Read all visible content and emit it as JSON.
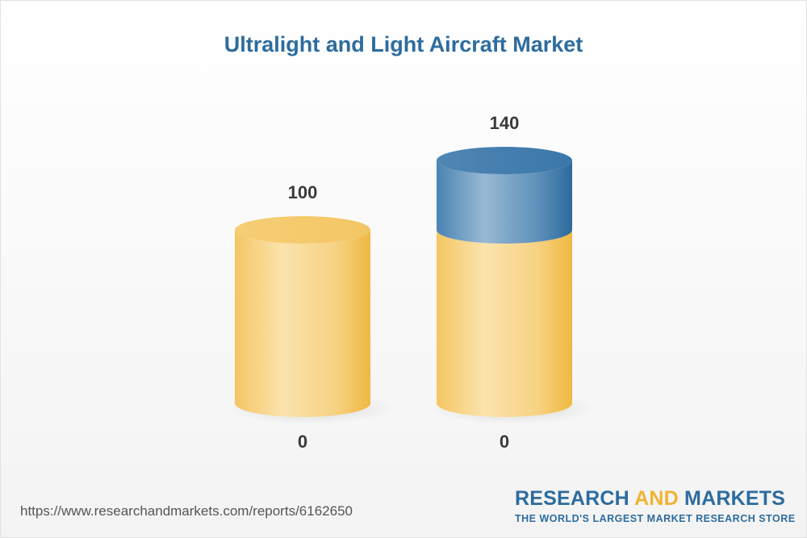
{
  "title": "Ultralight and Light Aircraft Market",
  "source_url": "https://www.researchandmarkets.com/reports/6162650",
  "brand": {
    "word1": "RESEARCH",
    "word2": "AND",
    "word3": "MARKETS",
    "tagline": "THE WORLD'S LARGEST MARKET RESEARCH STORE"
  },
  "colors": {
    "title": "#2d6c9e",
    "base_series": "#f2c45a",
    "growth_series": "#3b78aa",
    "brand_blue": "#2d6c9e",
    "brand_accent": "#f0b335",
    "label_text": "#3a3a3a"
  },
  "chart_data": {
    "type": "bar",
    "style": "3d-cylinder-stacked",
    "categories": [
      "0",
      "0"
    ],
    "series": [
      {
        "values": [
          100,
          100
        ]
      },
      {
        "values": [
          0,
          40
        ]
      }
    ],
    "totals": [
      100,
      140
    ],
    "ylim": [
      0,
      140
    ],
    "xlabel": "",
    "ylabel": "",
    "grid": false,
    "legend": "none"
  }
}
